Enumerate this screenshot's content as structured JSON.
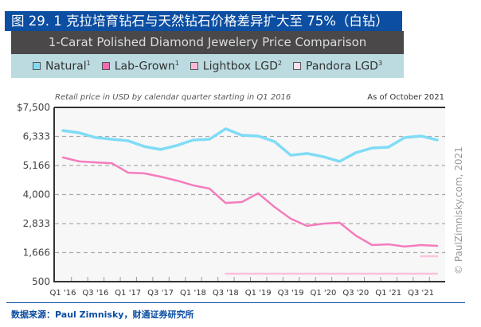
{
  "figure_title": "图 29. 1 克拉培育钻石与天然钻石价格差异扩大至 75%（白钻）",
  "footer": "数据来源：Paul Zimnisky，财通证券研究所",
  "colors": {
    "title_bg": "#0b4ea2",
    "header_bg": "#4a4848",
    "legend_bg": "#bcdbe0",
    "plot_bg": "#f7f7f7",
    "natural": "#7fdcf6",
    "lab_grown": "#f47cbd",
    "lightbox": "#fbbfdc",
    "pandora": "#fcc8df"
  },
  "legend": [
    {
      "label": "Natural",
      "sup": "1",
      "color": "#7fdcf6"
    },
    {
      "label": "Lab-Grown",
      "sup": "1",
      "color": "#f06bb1"
    },
    {
      "label": "Lightbox LGD",
      "sup": "2",
      "color": "#fab8d6"
    },
    {
      "label": "Pandora LGD",
      "sup": "3",
      "color": "#fde0ec"
    }
  ],
  "chart_data": {
    "type": "line",
    "title": "1-Carat Polished Diamond Jewelery Price Comparison",
    "subtitle": "Retail price in USD by calendar quarter starting in Q1 2016",
    "annotation": "As of October 2021",
    "copyright": "© PaulZimnisky.com, 2021",
    "xlabel": "",
    "ylabel": "",
    "ylim": [
      500,
      7500
    ],
    "yticks": [
      500,
      1666,
      2833,
      4000,
      5166,
      6333,
      7500
    ],
    "ytick_labels": [
      "500",
      "1,666",
      "2,833",
      "4,000",
      "5,166",
      "6,333",
      "$7,500"
    ],
    "grid": "horizontal dashed",
    "legend_position": "top",
    "x": [
      "Q1 '16",
      "Q2 '16",
      "Q3 '16",
      "Q4 '16",
      "Q1 '17",
      "Q2 '17",
      "Q3 '17",
      "Q4 '17",
      "Q1 '18",
      "Q2 '18",
      "Q3 '18",
      "Q4 '18",
      "Q1 '19",
      "Q2 '19",
      "Q3 '19",
      "Q4 '19",
      "Q1 '20",
      "Q2 '20",
      "Q3 '20",
      "Q4 '20",
      "Q1 '21",
      "Q2 '21",
      "Q3 '21",
      "Q4 '21"
    ],
    "xtick_labels": [
      "Q1 '16",
      "Q3 '16",
      "Q1 '17",
      "Q3 '17",
      "Q1 '18",
      "Q3 '18",
      "Q1 '19",
      "Q3 '19",
      "Q1 '20",
      "Q3 '20",
      "Q1 '21",
      "Q3 '21"
    ],
    "series": [
      {
        "name": "Natural",
        "color": "#7fdcf6",
        "values": [
          6570,
          6480,
          6290,
          6220,
          6160,
          5930,
          5810,
          5970,
          6190,
          6220,
          6640,
          6380,
          6350,
          6130,
          5580,
          5650,
          5520,
          5330,
          5680,
          5870,
          5900,
          6290,
          6350,
          6190
        ]
      },
      {
        "name": "Lab-Grown",
        "color": "#f47cbd",
        "values": [
          5490,
          5330,
          5290,
          5260,
          4880,
          4850,
          4720,
          4560,
          4370,
          4240,
          3660,
          3700,
          4050,
          3500,
          3030,
          2740,
          2830,
          2870,
          2350,
          1970,
          2000,
          1910,
          1970,
          1940
        ]
      },
      {
        "name": "Lightbox LGD",
        "color": "#fbc3de",
        "values": [
          null,
          null,
          null,
          null,
          null,
          null,
          null,
          null,
          null,
          null,
          null,
          null,
          null,
          null,
          null,
          null,
          null,
          null,
          null,
          null,
          null,
          null,
          1520,
          1520
        ]
      },
      {
        "name": "Pandora LGD",
        "color": "#fbbfdc",
        "values": [
          null,
          null,
          null,
          null,
          null,
          null,
          null,
          null,
          null,
          null,
          820,
          820,
          820,
          820,
          820,
          820,
          820,
          820,
          820,
          820,
          820,
          820,
          820,
          820
        ]
      }
    ]
  }
}
